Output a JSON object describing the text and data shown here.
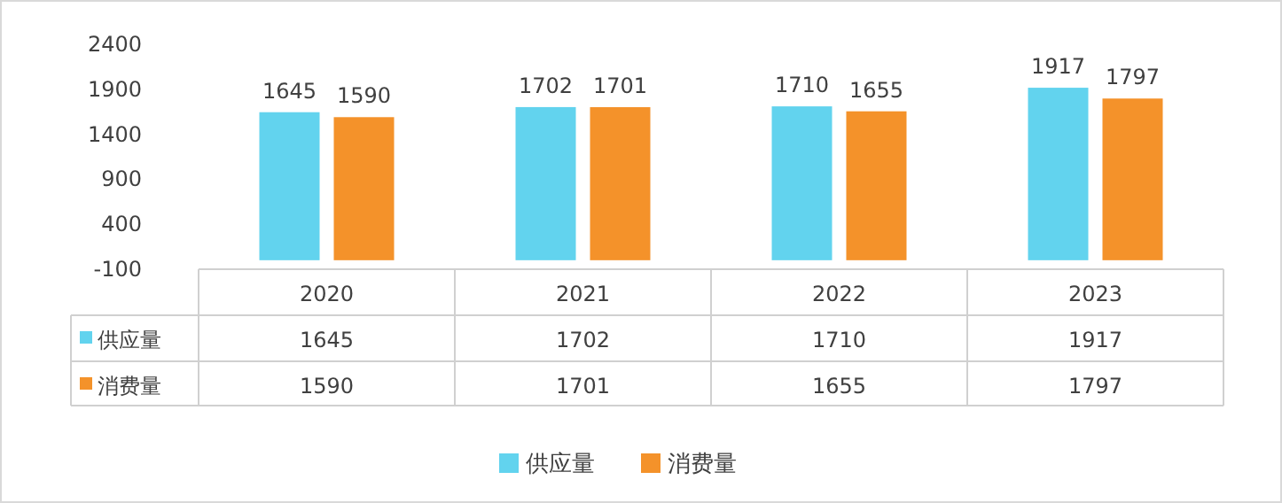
{
  "chart_data": {
    "type": "bar",
    "categories": [
      "2020",
      "2021",
      "2022",
      "2023"
    ],
    "series": [
      {
        "name": "供应量",
        "color": "#62d3ee",
        "values": [
          1645,
          1702,
          1710,
          1917
        ],
        "value_labels": [
          "1645",
          "1702",
          "1710",
          "1917"
        ]
      },
      {
        "name": "消费量",
        "color": "#f4922a",
        "values": [
          1590,
          1701,
          1655,
          1797
        ],
        "value_labels": [
          "1590",
          "1701",
          "1655",
          "1797"
        ]
      }
    ],
    "ylim": [
      -100,
      2400
    ],
    "yticks": [
      -100,
      400,
      900,
      1400,
      1900,
      2400
    ],
    "data_labels": true,
    "annotations": [
      "1645",
      "1702",
      "1710",
      "1917",
      "1590",
      "1701",
      "1655",
      "1797"
    ],
    "legend": "bottom"
  }
}
